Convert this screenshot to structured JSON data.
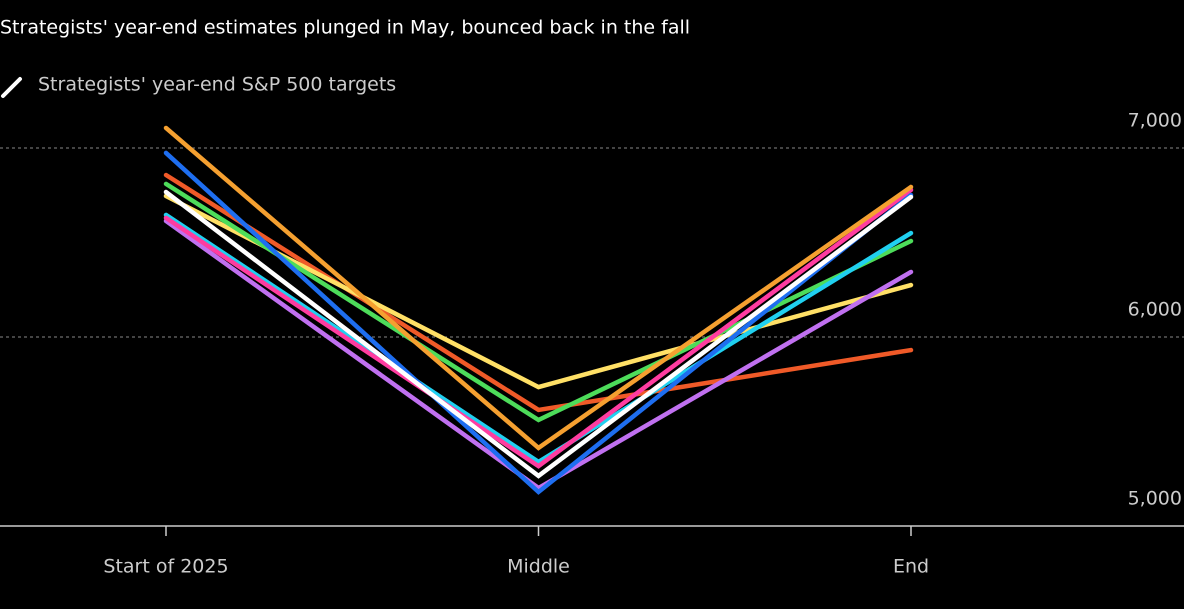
{
  "chart_data": {
    "type": "line",
    "subtitle": "Strategists' year-end estimates plunged in May, bounced back in the fall",
    "legend_label": "Strategists' year-end S&P 500 targets",
    "categories": [
      "Start of 2025",
      "Middle",
      "End"
    ],
    "series": [
      {
        "color": "#f05a28",
        "values": [
          6857,
          5614,
          5931
        ]
      },
      {
        "color": "#ffe066",
        "values": [
          6746,
          5735,
          6275
        ]
      },
      {
        "color": "#c070f0",
        "values": [
          6614,
          5201,
          6344
        ]
      },
      {
        "color": "#4ddc5a",
        "values": [
          6810,
          5561,
          6508
        ]
      },
      {
        "color": "#20d0f0",
        "values": [
          6646,
          5339,
          6550
        ]
      },
      {
        "color": "#ff3ca0",
        "values": [
          6630,
          5317,
          6778
        ]
      },
      {
        "color": "#1e6ef0",
        "values": [
          6974,
          5180,
          6751
        ]
      },
      {
        "color": "#f5a030",
        "values": [
          7106,
          5413,
          6794
        ]
      },
      {
        "color": "#ffffff",
        "values": [
          6767,
          5265,
          6741
        ]
      }
    ],
    "ylim": [
      5000,
      7000
    ],
    "yticks": [
      {
        "value": 5000,
        "label": "5,000"
      },
      {
        "value": 6000,
        "label": "6,000"
      },
      {
        "value": 7000,
        "label": "7,000"
      }
    ],
    "grid": true
  }
}
